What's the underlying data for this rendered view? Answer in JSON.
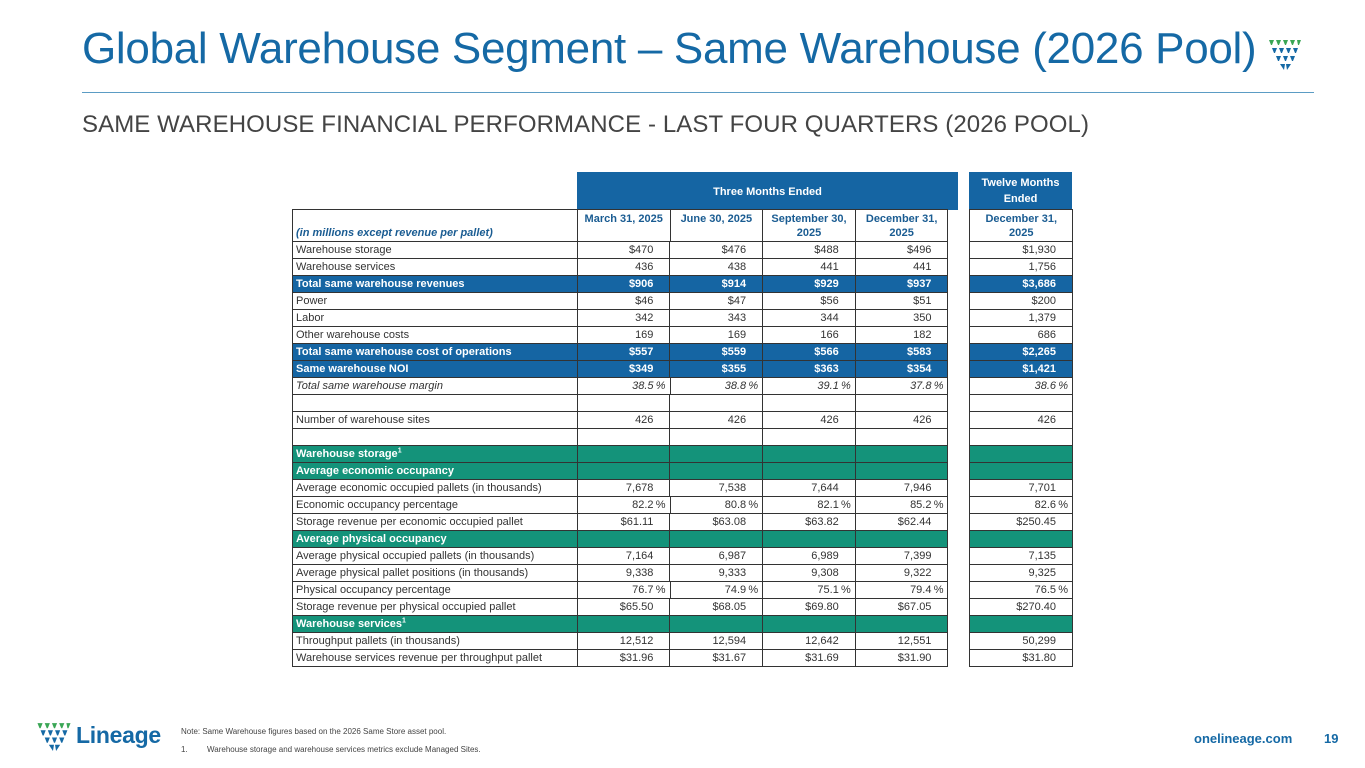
{
  "header": {
    "title": "Global Warehouse Segment – Same Warehouse (2026 Pool)",
    "subtitle": "SAME WAREHOUSE FINANCIAL PERFORMANCE - LAST FOUR QUARTERS (2026 POOL)"
  },
  "colors": {
    "brand_blue": "#1569a5",
    "header_blue": "#1565a3",
    "section_green": "#14937a",
    "logo_green": "#3aa655"
  },
  "table": {
    "group_header_three": "Three Months Ended",
    "group_header_twelve": "Twelve Months Ended",
    "units_label": "(in millions except revenue per pallet)",
    "columns": [
      "March 31, 2025",
      "June 30, 2025",
      "September 30, 2025",
      "December 31, 2025"
    ],
    "annual_column": "December 31, 2025",
    "rows": [
      {
        "label": "Warehouse storage",
        "values": [
          "$470",
          "$476",
          "$488",
          "$496"
        ],
        "annual": "$1,930"
      },
      {
        "label": "Warehouse services",
        "values": [
          "436",
          "438",
          "441",
          "441"
        ],
        "annual": "1,756"
      },
      {
        "label": "Total same warehouse revenues",
        "values": [
          "$906",
          "$914",
          "$929",
          "$937"
        ],
        "annual": "$3,686",
        "style": "blue"
      },
      {
        "label": "Power",
        "values": [
          "$46",
          "$47",
          "$56",
          "$51"
        ],
        "annual": "$200"
      },
      {
        "label": "Labor",
        "values": [
          "342",
          "343",
          "344",
          "350"
        ],
        "annual": "1,379"
      },
      {
        "label": "Other warehouse costs",
        "values": [
          "169",
          "169",
          "166",
          "182"
        ],
        "annual": "686"
      },
      {
        "label": "Total same warehouse cost of operations",
        "values": [
          "$557",
          "$559",
          "$566",
          "$583"
        ],
        "annual": "$2,265",
        "style": "blue"
      },
      {
        "label": "Same warehouse NOI",
        "values": [
          "$349",
          "$355",
          "$363",
          "$354"
        ],
        "annual": "$1,421",
        "style": "blue"
      },
      {
        "label": "Total same warehouse margin",
        "values": [
          "38.5",
          "38.8",
          "39.1",
          "37.8"
        ],
        "annual": "38.6",
        "suffix": "%",
        "style": "italic"
      },
      {
        "label": "",
        "values": [
          "",
          "",
          "",
          ""
        ],
        "annual": ""
      },
      {
        "label": "Number of warehouse sites",
        "values": [
          "426",
          "426",
          "426",
          "426"
        ],
        "annual": "426"
      },
      {
        "label": "",
        "values": [
          "",
          "",
          "",
          ""
        ],
        "annual": ""
      },
      {
        "label": "Warehouse storage",
        "sup": "1",
        "values": [
          "",
          "",
          "",
          ""
        ],
        "annual": "",
        "style": "green"
      },
      {
        "label": "Average economic occupancy",
        "values": [
          "",
          "",
          "",
          ""
        ],
        "annual": "",
        "style": "green"
      },
      {
        "label": "Average economic occupied pallets (in thousands)",
        "values": [
          "7,678",
          "7,538",
          "7,644",
          "7,946"
        ],
        "annual": "7,701"
      },
      {
        "label": "Economic occupancy percentage",
        "values": [
          "82.2",
          "80.8",
          "82.1",
          "85.2"
        ],
        "annual": "82.6",
        "suffix": "%"
      },
      {
        "label": "Storage revenue per economic occupied pallet",
        "values": [
          "$61.11",
          "$63.08",
          "$63.82",
          "$62.44"
        ],
        "annual": "$250.45"
      },
      {
        "label": "Average physical occupancy",
        "values": [
          "",
          "",
          "",
          ""
        ],
        "annual": "",
        "style": "green"
      },
      {
        "label": "Average physical occupied pallets (in thousands)",
        "values": [
          "7,164",
          "6,987",
          "6,989",
          "7,399"
        ],
        "annual": "7,135"
      },
      {
        "label": "Average physical pallet positions (in thousands)",
        "values": [
          "9,338",
          "9,333",
          "9,308",
          "9,322"
        ],
        "annual": "9,325"
      },
      {
        "label": "Physical occupancy percentage",
        "values": [
          "76.7",
          "74.9",
          "75.1",
          "79.4"
        ],
        "annual": "76.5",
        "suffix": "%"
      },
      {
        "label": "Storage revenue per physical occupied pallet",
        "values": [
          "$65.50",
          "$68.05",
          "$69.80",
          "$67.05"
        ],
        "annual": "$270.40"
      },
      {
        "label": "Warehouse services",
        "sup": "1",
        "values": [
          "",
          "",
          "",
          ""
        ],
        "annual": "",
        "style": "green"
      },
      {
        "label": "Throughput pallets (in thousands)",
        "values": [
          "12,512",
          "12,594",
          "12,642",
          "12,551"
        ],
        "annual": "50,299"
      },
      {
        "label": "Warehouse services revenue per throughput pallet",
        "values": [
          "$31.96",
          "$31.67",
          "$31.69",
          "$31.90"
        ],
        "annual": "$31.80"
      }
    ]
  },
  "footer": {
    "brand": "Lineage",
    "note": "Note: Same Warehouse figures based on the 2026 Same Store asset pool.",
    "footnote_number": "1.",
    "footnote": "Warehouse storage and warehouse services metrics exclude Managed Sites.",
    "url": "onelineage.com",
    "page_number": "19"
  }
}
